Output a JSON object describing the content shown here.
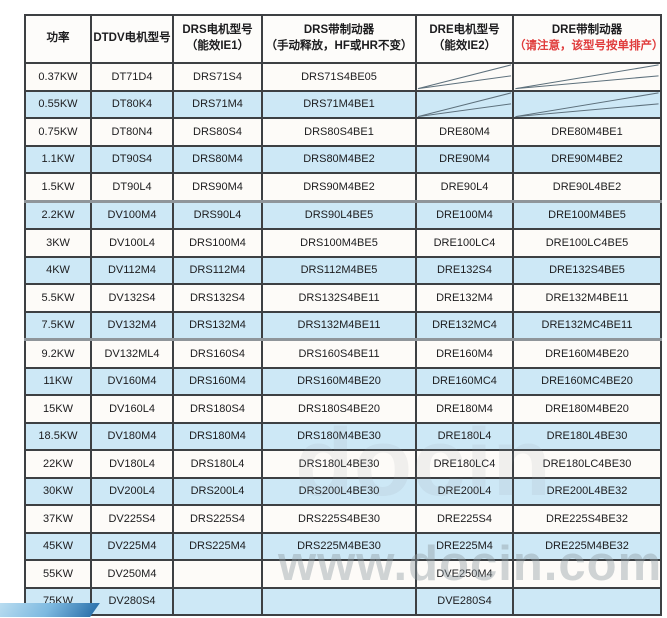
{
  "table": {
    "headers": [
      {
        "line1": "功率",
        "line2": ""
      },
      {
        "line1": "DTDV电机型号",
        "line2": ""
      },
      {
        "line1": "DRS电机型号",
        "line2": "（能效IE1）"
      },
      {
        "line1": "DRS带制动器",
        "line2": "（手动释放，HF或HR不变）"
      },
      {
        "line1": "DRE电机型号",
        "line2": "（能效IE2）"
      },
      {
        "line1": "DRE带制动器",
        "line2": "（请注意，该型号按单排产）"
      }
    ],
    "rows": [
      {
        "power": "0.37KW",
        "dtdv": "DT71D4",
        "drs": "DRS71S4",
        "drs_brake": "DRS71S4BE05",
        "dre": "",
        "dre_brake": "",
        "dre_na": true,
        "group_start": false
      },
      {
        "power": "0.55KW",
        "dtdv": "DT80K4",
        "drs": "DRS71M4",
        "drs_brake": "DRS71M4BE1",
        "dre": "",
        "dre_brake": "",
        "dre_na": true,
        "group_start": false
      },
      {
        "power": "0.75KW",
        "dtdv": "DT80N4",
        "drs": "DRS80S4",
        "drs_brake": "DRS80S4BE1",
        "dre": "DRE80M4",
        "dre_brake": "DRE80M4BE1",
        "dre_na": false,
        "group_start": false
      },
      {
        "power": "1.1KW",
        "dtdv": "DT90S4",
        "drs": "DRS80M4",
        "drs_brake": "DRS80M4BE2",
        "dre": "DRE90M4",
        "dre_brake": "DRE90M4BE2",
        "dre_na": false,
        "group_start": false
      },
      {
        "power": "1.5KW",
        "dtdv": "DT90L4",
        "drs": "DRS90M4",
        "drs_brake": "DRS90M4BE2",
        "dre": "DRE90L4",
        "dre_brake": "DRE90L4BE2",
        "dre_na": false,
        "group_start": false
      },
      {
        "power": "2.2KW",
        "dtdv": "DV100M4",
        "drs": "DRS90L4",
        "drs_brake": "DRS90L4BE5",
        "dre": "DRE100M4",
        "dre_brake": "DRE100M4BE5",
        "dre_na": false,
        "group_start": true
      },
      {
        "power": "3KW",
        "dtdv": "DV100L4",
        "drs": "DRS100M4",
        "drs_brake": "DRS100M4BE5",
        "dre": "DRE100LC4",
        "dre_brake": "DRE100LC4BE5",
        "dre_na": false,
        "group_start": false
      },
      {
        "power": "4KW",
        "dtdv": "DV112M4",
        "drs": "DRS112M4",
        "drs_brake": "DRS112M4BE5",
        "dre": "DRE132S4",
        "dre_brake": "DRE132S4BE5",
        "dre_na": false,
        "group_start": false
      },
      {
        "power": "5.5KW",
        "dtdv": "DV132S4",
        "drs": "DRS132S4",
        "drs_brake": "DRS132S4BE11",
        "dre": "DRE132M4",
        "dre_brake": "DRE132M4BE11",
        "dre_na": false,
        "group_start": false
      },
      {
        "power": "7.5KW",
        "dtdv": "DV132M4",
        "drs": "DRS132M4",
        "drs_brake": "DRS132M4BE11",
        "dre": "DRE132MC4",
        "dre_brake": "DRE132MC4BE11",
        "dre_na": false,
        "group_start": false
      },
      {
        "power": "9.2KW",
        "dtdv": "DV132ML4",
        "drs": "DRS160S4",
        "drs_brake": "DRS160S4BE11",
        "dre": "DRE160M4",
        "dre_brake": "DRE160M4BE20",
        "dre_na": false,
        "group_start": true
      },
      {
        "power": "11KW",
        "dtdv": "DV160M4",
        "drs": "DRS160M4",
        "drs_brake": "DRS160M4BE20",
        "dre": "DRE160MC4",
        "dre_brake": "DRE160MC4BE20",
        "dre_na": false,
        "group_start": false
      },
      {
        "power": "15KW",
        "dtdv": "DV160L4",
        "drs": "DRS180S4",
        "drs_brake": "DRS180S4BE20",
        "dre": "DRE180M4",
        "dre_brake": "DRE180M4BE20",
        "dre_na": false,
        "group_start": false
      },
      {
        "power": "18.5KW",
        "dtdv": "DV180M4",
        "drs": "DRS180M4",
        "drs_brake": "DRS180M4BE30",
        "dre": "DRE180L4",
        "dre_brake": "DRE180L4BE30",
        "dre_na": false,
        "group_start": false
      },
      {
        "power": "22KW",
        "dtdv": "DV180L4",
        "drs": "DRS180L4",
        "drs_brake": "DRS180L4BE30",
        "dre": "DRE180LC4",
        "dre_brake": "DRE180LC4BE30",
        "dre_na": false,
        "group_start": false
      },
      {
        "power": "30KW",
        "dtdv": "DV200L4",
        "drs": "DRS200L4",
        "drs_brake": "DRS200L4BE30",
        "dre": "DRE200L4",
        "dre_brake": "DRE200L4BE32",
        "dre_na": false,
        "group_start": false
      },
      {
        "power": "37KW",
        "dtdv": "DV225S4",
        "drs": "DRS225S4",
        "drs_brake": "DRS225S4BE30",
        "dre": "DRE225S4",
        "dre_brake": "DRE225S4BE32",
        "dre_na": false,
        "group_start": false
      },
      {
        "power": "45KW",
        "dtdv": "DV225M4",
        "drs": "DRS225M4",
        "drs_brake": "DRS225M4BE30",
        "dre": "DRE225M4",
        "dre_brake": "DRE225M4BE32",
        "dre_na": false,
        "group_start": false
      },
      {
        "power": "55KW",
        "dtdv": "DV250M4",
        "drs": "",
        "drs_brake": "",
        "dre": "DVE250M4",
        "dre_brake": "",
        "dre_na": false,
        "group_start": false
      },
      {
        "power": "75KW",
        "dtdv": "DV280S4",
        "drs": "",
        "drs_brake": "",
        "dre": "DVE280S4",
        "dre_brake": "",
        "dre_na": false,
        "group_start": false
      }
    ]
  },
  "watermark": {
    "bottom_text": "www.docin.com",
    "mid_text": "docin"
  },
  "colors": {
    "row_blue": "#cde8f6",
    "row_white": "#fdfbf8",
    "grid": "#3d4043",
    "section_divider": "#8f959a",
    "header_note_red": "#e03c3c",
    "watermark_gray": "#909aa2"
  }
}
